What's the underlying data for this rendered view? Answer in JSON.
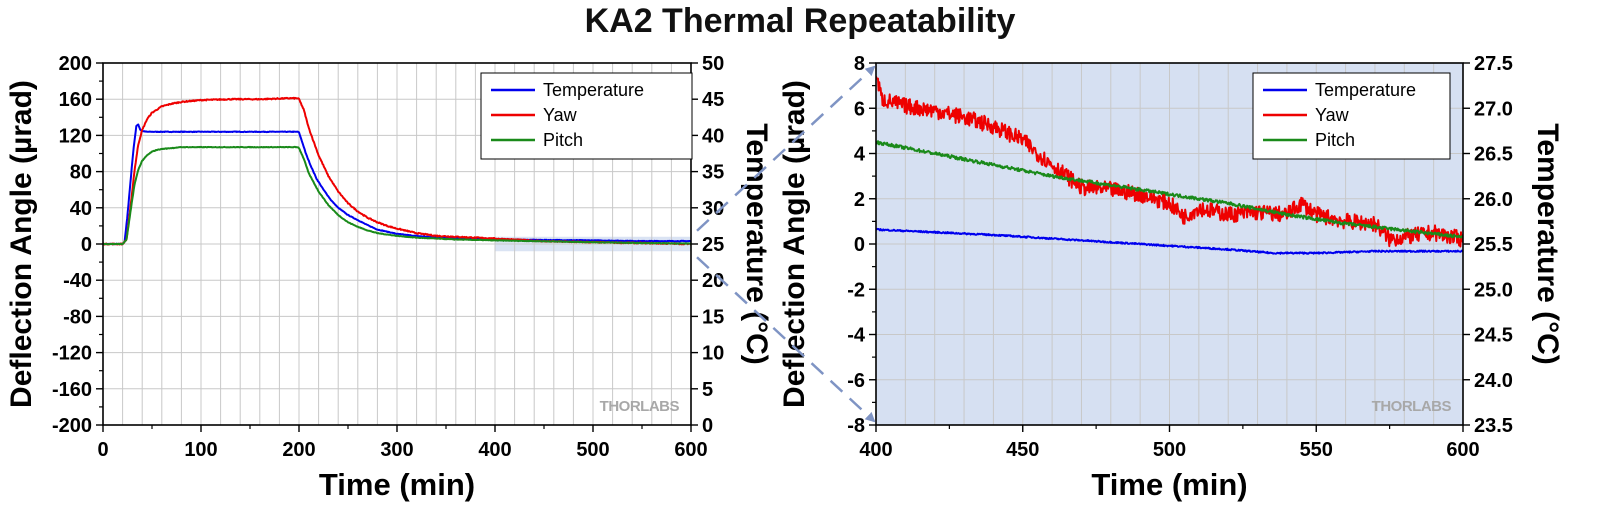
{
  "title": "KA2 Thermal Repeatability",
  "watermark": "THORLABS",
  "colors": {
    "temperature": "#0000ee",
    "yaw": "#ee0000",
    "pitch": "#1a8a1a",
    "zoom_region": "#d6e0f2",
    "grid": "#c8c8c8",
    "connector": "#7f94c4"
  },
  "chart_data": [
    {
      "type": "line",
      "xlabel": "Time (min)",
      "ylabel": "Deflection Angle (µrad)",
      "y2label": "Temperature (°C)",
      "xlim": [
        0,
        600
      ],
      "ylim": [
        -200,
        200
      ],
      "y2lim": [
        0,
        50
      ],
      "xticks": [
        "0",
        "100",
        "200",
        "300",
        "400",
        "500",
        "600"
      ],
      "yticks": [
        "-200",
        "-160",
        "-120",
        "-80",
        "-40",
        "0",
        "40",
        "80",
        "120",
        "160",
        "200"
      ],
      "y2ticks": [
        "0",
        "5",
        "10",
        "15",
        "20",
        "25",
        "30",
        "35",
        "40",
        "45",
        "50"
      ],
      "grid": true,
      "legend_position": "top-right",
      "zoom_region": {
        "x": [
          400,
          600
        ],
        "y": [
          -8,
          8
        ]
      },
      "series": [
        {
          "name": "Temperature",
          "axis": "right",
          "x": [
            0,
            20,
            22,
            25,
            28,
            31,
            34,
            36,
            38,
            40,
            45,
            60,
            100,
            150,
            199,
            200,
            203,
            207,
            212,
            218,
            225,
            233,
            240,
            250,
            260,
            270,
            280,
            300,
            320,
            340,
            360,
            380,
            400,
            420,
            450,
            500,
            550,
            600
          ],
          "values": [
            25,
            25,
            25.3,
            29,
            33.5,
            38,
            41.3,
            41.5,
            40.8,
            40.6,
            40.5,
            40.5,
            40.5,
            40.5,
            40.5,
            40.4,
            39.2,
            37.5,
            35.8,
            34,
            32.5,
            31,
            30,
            29,
            28.3,
            27.6,
            27,
            26.4,
            26.1,
            25.9,
            25.8,
            25.8,
            25.7,
            25.6,
            25.55,
            25.5,
            25.4,
            25.4
          ]
        },
        {
          "name": "Yaw",
          "axis": "left",
          "x": [
            0,
            20,
            24,
            28,
            32,
            36,
            40,
            45,
            50,
            60,
            70,
            80,
            100,
            130,
            160,
            190,
            199,
            200,
            205,
            210,
            220,
            230,
            240,
            250,
            260,
            270,
            280,
            290,
            300,
            320,
            340,
            360,
            380,
            400,
            450,
            500,
            550,
            600
          ],
          "values": [
            0,
            0,
            5,
            40,
            80,
            110,
            126,
            138,
            145,
            152,
            155,
            157,
            159,
            160,
            160,
            161,
            161,
            160,
            148,
            128,
            98,
            75,
            58,
            45,
            36,
            29,
            24,
            20,
            17,
            12,
            9,
            8,
            7,
            6,
            3,
            2,
            1,
            0
          ]
        },
        {
          "name": "Pitch",
          "axis": "left",
          "x": [
            0,
            20,
            24,
            28,
            32,
            36,
            40,
            45,
            50,
            55,
            60,
            70,
            80,
            100,
            150,
            199,
            200,
            205,
            210,
            220,
            230,
            240,
            250,
            260,
            270,
            280,
            300,
            320,
            340,
            360,
            400,
            450,
            500,
            550,
            600
          ],
          "values": [
            0,
            0,
            5,
            35,
            65,
            82,
            92,
            98,
            102,
            104,
            105,
            106,
            107,
            107,
            107,
            107,
            106,
            94,
            78,
            58,
            43,
            32,
            24,
            19,
            15,
            12,
            9,
            7,
            6,
            5,
            4,
            3,
            2,
            1,
            0.5
          ]
        }
      ]
    },
    {
      "type": "line",
      "xlabel": "Time (min)",
      "ylabel": "Deflection Angle (µrad)",
      "y2label": "Temperature (°C)",
      "xlim": [
        400,
        600
      ],
      "ylim": [
        -8,
        8
      ],
      "y2lim": [
        23.5,
        27.5
      ],
      "xticks": [
        "400",
        "450",
        "500",
        "550",
        "600"
      ],
      "yticks": [
        "-8",
        "-6",
        "-4",
        "-2",
        "0",
        "2",
        "4",
        "6",
        "8"
      ],
      "y2ticks": [
        "23.5",
        "24.0",
        "24.5",
        "25.0",
        "25.5",
        "26.0",
        "26.5",
        "27.0",
        "27.5"
      ],
      "grid": true,
      "legend_position": "top-right",
      "series": [
        {
          "name": "Temperature",
          "axis": "right",
          "x": [
            400,
            420,
            440,
            460,
            480,
            500,
            520,
            535,
            550,
            570,
            600
          ],
          "values": [
            25.66,
            25.63,
            25.6,
            25.56,
            25.52,
            25.48,
            25.44,
            25.4,
            25.4,
            25.42,
            25.42
          ]
        },
        {
          "name": "Yaw",
          "axis": "left",
          "x": [
            400,
            402,
            410,
            420,
            430,
            440,
            450,
            455,
            460,
            465,
            470,
            480,
            490,
            500,
            505,
            510,
            520,
            530,
            540,
            545,
            550,
            560,
            570,
            575,
            580,
            590,
            600
          ],
          "values": [
            7.5,
            6.4,
            6.1,
            5.9,
            5.6,
            5.2,
            4.6,
            4.0,
            3.5,
            3.0,
            2.5,
            2.4,
            2.2,
            1.8,
            1.2,
            1.6,
            1.3,
            1.4,
            1.3,
            1.8,
            1.3,
            1.0,
            0.9,
            0.2,
            0.3,
            0.5,
            0.2
          ]
        },
        {
          "name": "Pitch",
          "axis": "left",
          "x": [
            400,
            420,
            440,
            460,
            480,
            500,
            520,
            540,
            560,
            580,
            600
          ],
          "values": [
            4.5,
            4.0,
            3.5,
            3.0,
            2.6,
            2.2,
            1.8,
            1.3,
            0.9,
            0.6,
            0.3
          ]
        }
      ]
    }
  ]
}
